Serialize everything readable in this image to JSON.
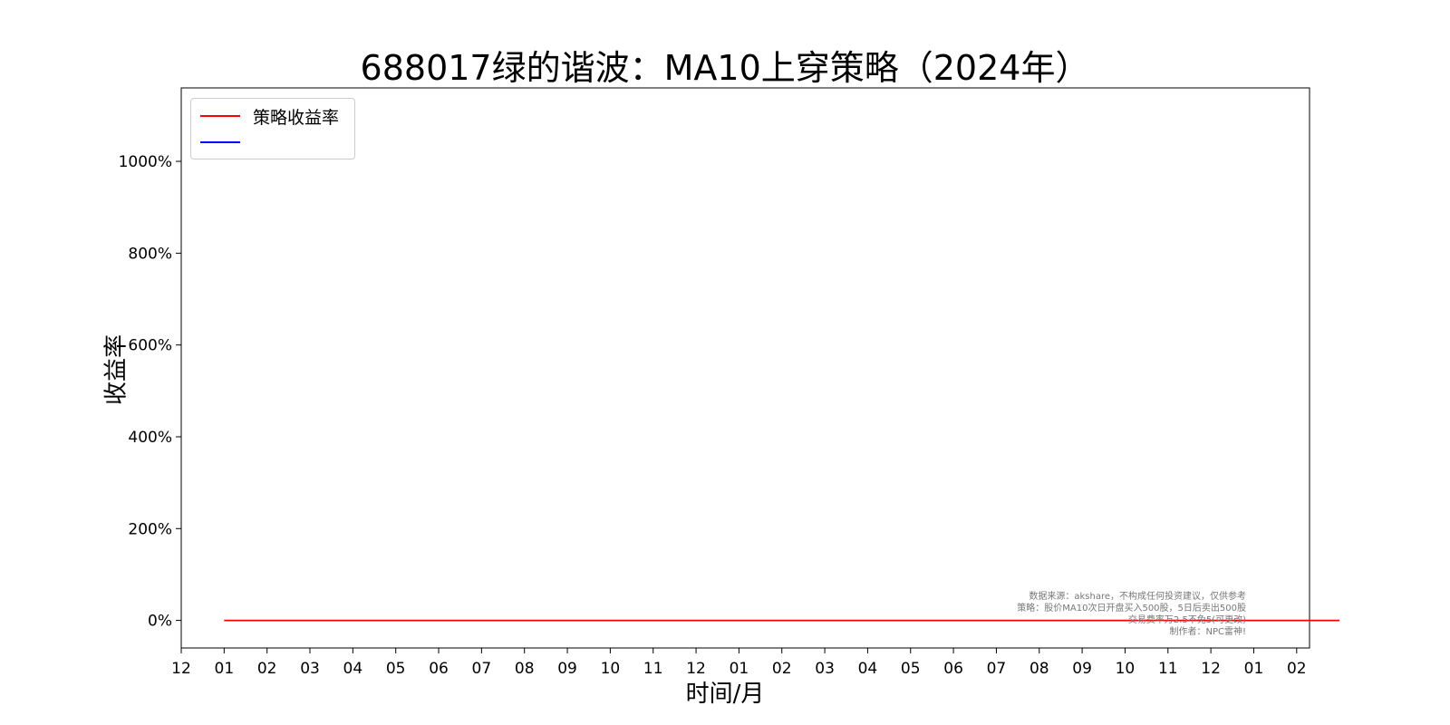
{
  "chart_data": {
    "type": "line",
    "title": "688017绿的谐波：MA10上穿策略（2024年）",
    "xlabel": "时间/月",
    "ylabel": "收益率",
    "x_tick_labels": [
      "12",
      "01",
      "02",
      "03",
      "04",
      "05",
      "06",
      "07",
      "08",
      "09",
      "10",
      "11",
      "12",
      "01",
      "02",
      "03",
      "04",
      "05",
      "06",
      "07",
      "08",
      "09",
      "10",
      "11",
      "12",
      "01",
      "02"
    ],
    "y_tick_labels": [
      "0%",
      "200%",
      "400%",
      "600%",
      "800%",
      "1000%"
    ],
    "y_ticks": [
      0,
      200,
      400,
      600,
      800,
      1000
    ],
    "ylim": [
      -60,
      1160
    ],
    "xlim": [
      -1,
      25.3
    ],
    "legend_position": "upper-left",
    "grid": false,
    "series": [
      {
        "name": "策略收益率",
        "color": "#ff0000",
        "x": [
          0,
          0.3,
          0.5,
          0.7,
          1.0,
          1.2,
          1.4,
          1.6,
          1.8,
          2.0,
          2.2,
          2.4,
          2.6,
          2.8,
          3.0,
          3.2,
          3.4,
          3.6,
          3.8,
          4.0,
          4.2,
          4.4,
          4.6,
          5.0,
          5.4,
          5.5,
          5.6,
          5.8,
          6.0,
          6.2,
          6.4,
          6.6,
          7.0,
          7.4,
          8.0,
          8.4,
          9.0,
          9.4,
          9.8,
          10.0,
          10.4,
          10.7,
          10.9,
          11.1,
          11.4,
          11.8,
          12.2,
          12.6,
          13.0,
          13.4,
          13.8,
          14.2,
          14.6,
          14.9,
          15.0,
          15.2,
          15.6,
          16.0,
          16.4,
          16.8,
          17.2,
          17.6,
          17.8,
          18.0,
          18.2,
          18.4,
          18.6,
          18.8,
          19.2,
          19.6,
          20.0,
          20.4,
          20.8,
          21.1,
          21.2,
          21.4,
          21.6,
          21.8,
          22.0,
          22.2,
          22.4,
          22.6,
          22.8,
          23.0,
          23.2,
          23.4,
          23.6,
          23.8,
          23.9,
          24.0,
          24.2,
          24.4,
          24.6,
          24.8,
          25.0,
          25.2,
          25.3,
          25.5,
          25.6,
          25.7,
          25.8,
          25.9,
          26.0
        ],
        "values": [
          0,
          0,
          0,
          0,
          0,
          0,
          0,
          0,
          0,
          0,
          0,
          0,
          0,
          0,
          0,
          0,
          0,
          0,
          0,
          0,
          0,
          0,
          0,
          0,
          0,
          0,
          0,
          0,
          0,
          0,
          0,
          0,
          0,
          0,
          0,
          0,
          0,
          0,
          0,
          0,
          0,
          0,
          0,
          0,
          0,
          0,
          0,
          0,
          0,
          0,
          0,
          0,
          0,
          0,
          0,
          0,
          0,
          0,
          0,
          0,
          0,
          0,
          0,
          0,
          0,
          0,
          0,
          0,
          0,
          0,
          0,
          0,
          0,
          0,
          0,
          0,
          0,
          0,
          0,
          0,
          0,
          0,
          0,
          0,
          0,
          0,
          0,
          0,
          0,
          0,
          0,
          0,
          0,
          0,
          0,
          0,
          0,
          0,
          0,
          0,
          0,
          0,
          0
        ]
      }
    ]
  },
  "footnote_lines": [
    "数据来源：akshare，不构成任何投资建议，仅供参考",
    "策略：股价MA10次日开盘买入500股，5日后卖出500股",
    "交易费率万2.5不免5(可更改)",
    "制作者：NPC雷神!"
  ]
}
